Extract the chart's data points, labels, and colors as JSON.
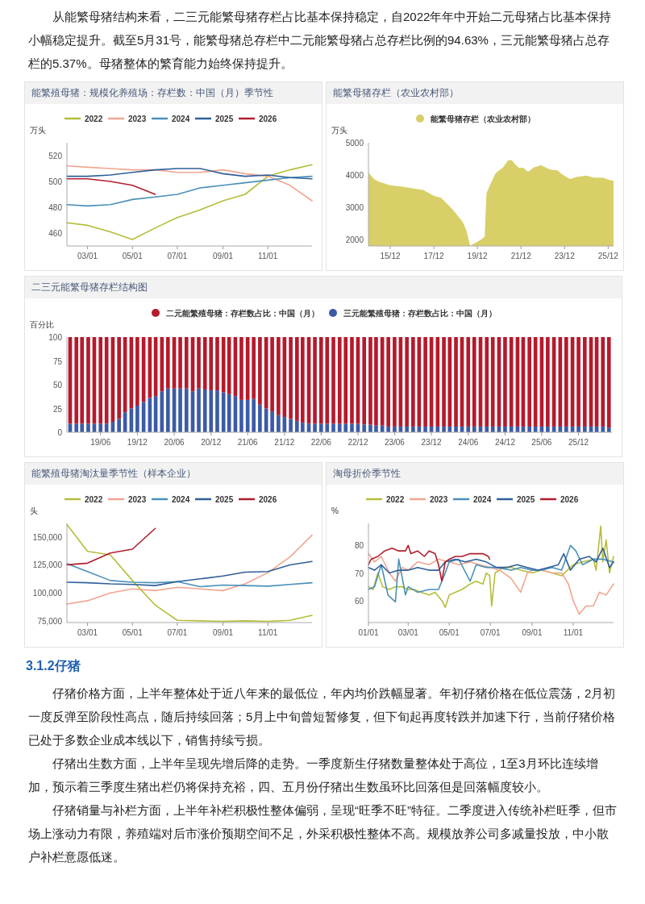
{
  "chart_data": [
    {
      "type": "line",
      "title": "能繁殖母猪：规模化养殖场：存栏数：中国（月）季节性",
      "ylabel": "万头",
      "legend": "top",
      "annotations": [
        "从能繁母猪结构来看，二三元能繁母猪存栏占比基本保持稳定，自2022年年中开始二元母猪占比基本保持小幅稳定提升。截至5月31号，能繁母猪总存栏中二元能繁母猪占总存栏比例的94.63%，三元能繁母猪占总存栏的5.37%。母猪整体的繁育能力始终保持提升。"
      ],
      "x": [
        "--02-01",
        "--03-01",
        "--04-01",
        "--05-01",
        "--06-01",
        "--07-01",
        "--08-01",
        "--09-01",
        "--10-01",
        "--11-01",
        "--12-01",
        "--12-31"
      ],
      "xlim": [
        "--02-01",
        "--12-31"
      ],
      "xticks": [
        {
          "value": "--03-01",
          "label": "03/01"
        },
        {
          "value": "--05-01",
          "label": "05/01"
        },
        {
          "value": "--07-01",
          "label": "07/01"
        },
        {
          "value": "--09-01",
          "label": "09/01"
        },
        {
          "value": "--11-01",
          "label": "11/01"
        }
      ],
      "ylim": [
        450,
        530
      ],
      "yticks": [
        460,
        480,
        500,
        520
      ],
      "series": [
        {
          "name": "2022",
          "color": "#b5bd3a",
          "values": [
            468,
            466,
            461,
            455,
            464,
            472,
            478,
            485,
            490,
            504,
            509,
            513
          ]
        },
        {
          "name": "2023",
          "color": "#f0a58f",
          "values": [
            512,
            511,
            510,
            509,
            509,
            507,
            507,
            509,
            506,
            504,
            497,
            485
          ]
        },
        {
          "name": "2024",
          "color": "#4a90b8",
          "values": [
            482,
            481,
            482,
            486,
            488,
            490,
            495,
            497,
            499,
            501,
            503,
            504
          ]
        },
        {
          "name": "2025",
          "color": "#2f5f9a",
          "values": [
            504,
            504,
            505,
            507,
            509,
            510,
            510,
            506,
            504,
            505,
            503,
            502
          ]
        },
        {
          "name": "2026",
          "color": "#b01e2e",
          "values": [
            502,
            502,
            500,
            497,
            490,
            null,
            null,
            null,
            null,
            null,
            null,
            null
          ]
        }
      ]
    },
    {
      "type": "area",
      "title": "能繁母猪存栏（农业农村部）",
      "ylabel": "万头",
      "legend": "top",
      "x": [
        "2014-12",
        "2015-03",
        "2015-06",
        "2015-12",
        "2016-05",
        "2016-12",
        "2017-06",
        "2017-12",
        "2018-04",
        "2018-08",
        "2018-11",
        "2019-04",
        "2019-06",
        "2019-08",
        "2019-10",
        "2020-02",
        "2020-04",
        "2020-05",
        "2020-07",
        "2020-10",
        "2021-02",
        "2021-05",
        "2021-07",
        "2021-09",
        "2021-11",
        "2022-01",
        "2022-04",
        "2022-07",
        "2022-11",
        "2022-12",
        "2023-04",
        "2023-08",
        "2023-11",
        "2024-03",
        "2024-07",
        "2024-12",
        "2025-04",
        "2025-09",
        "2025-12",
        "2026-03"
      ],
      "xlim": [
        "2014-12",
        "2026-03"
      ],
      "xticks": [
        {
          "value": "2015-12",
          "label": "15/12"
        },
        {
          "value": "2017-12",
          "label": "17/12"
        },
        {
          "value": "2019-12",
          "label": "19/12"
        },
        {
          "value": "2021-12",
          "label": "21/12"
        },
        {
          "value": "2023-12",
          "label": "23/12"
        },
        {
          "value": "2025-12",
          "label": "25/12"
        }
      ],
      "ylim": [
        1800,
        5000
      ],
      "yticks": [
        2000,
        3000,
        4000,
        5000
      ],
      "series": [
        {
          "name": "能繁母猪存栏（农业农村部）",
          "color": "#d8cf68",
          "values": [
            4080,
            3875,
            3786,
            3680,
            3650,
            3590,
            3536,
            3357,
            3295,
            3070,
            2890,
            2536,
            2268,
            1804,
            1866,
            2000,
            2089,
            3430,
            3700,
            4054,
            4232,
            4455,
            4455,
            4320,
            4214,
            4232,
            4098,
            4232,
            4304,
            4277,
            4170,
            4143,
            4009,
            3875,
            3946,
            3982,
            3920,
            3920,
            3857,
            3821
          ]
        }
      ]
    },
    {
      "type": "bar",
      "stacked": true,
      "title": "二三元能繁母猪存栏结构图",
      "ylabel": "百分比",
      "legend": "top",
      "x": [
        "2019-01",
        "2019-02",
        "2019-03",
        "2019-04",
        "2019-05",
        "2019-06",
        "2019-07",
        "2019-08",
        "2019-09",
        "2019-10",
        "2019-11",
        "2019-12",
        "2020-01",
        "2020-02",
        "2020-03",
        "2020-04",
        "2020-05",
        "2020-06",
        "2020-07",
        "2020-08",
        "2020-09",
        "2020-10",
        "2020-11",
        "2020-12",
        "2021-01",
        "2021-02",
        "2021-03",
        "2021-04",
        "2021-05",
        "2021-06",
        "2021-07",
        "2021-08",
        "2021-09",
        "2021-10",
        "2021-11",
        "2021-12",
        "2022-01",
        "2022-02",
        "2022-03",
        "2022-04",
        "2022-05",
        "2022-06",
        "2022-07",
        "2022-08",
        "2022-09",
        "2022-10",
        "2022-11",
        "2022-12",
        "2023-01",
        "2023-02",
        "2023-03",
        "2023-04",
        "2023-05",
        "2023-06",
        "2023-07",
        "2023-08",
        "2023-09",
        "2023-10",
        "2023-11",
        "2023-12",
        "2024-01",
        "2024-02",
        "2024-03",
        "2024-04",
        "2024-05",
        "2024-06",
        "2024-07",
        "2024-08",
        "2024-09",
        "2024-10",
        "2024-11",
        "2024-12",
        "2025-01",
        "2025-02",
        "2025-03",
        "2025-04",
        "2025-05",
        "2025-06",
        "2025-07",
        "2025-08",
        "2025-09",
        "2025-10",
        "2025-11",
        "2025-12",
        "2026-01",
        "2026-02",
        "2026-03",
        "2026-04",
        "2026-05"
      ],
      "xlim": [
        "2018-12-16",
        "2026-05-16"
      ],
      "xticks": [
        {
          "value": "2019-06",
          "label": "19/06"
        },
        {
          "value": "2019-12",
          "label": "19/12"
        },
        {
          "value": "2020-06",
          "label": "20/06"
        },
        {
          "value": "2020-12",
          "label": "20/12"
        },
        {
          "value": "2021-06",
          "label": "21/06"
        },
        {
          "value": "2021-12",
          "label": "21/12"
        },
        {
          "value": "2022-06",
          "label": "22/06"
        },
        {
          "value": "2022-12",
          "label": "22/12"
        },
        {
          "value": "2023-06",
          "label": "23/06"
        },
        {
          "value": "2023-12",
          "label": "23/12"
        },
        {
          "value": "2024-06",
          "label": "24/06"
        },
        {
          "value": "2024-12",
          "label": "24/12"
        },
        {
          "value": "2025-06",
          "label": "25/06"
        },
        {
          "value": "2025-12",
          "label": "25/12"
        }
      ],
      "ylim": [
        0,
        100
      ],
      "yticks": [
        0,
        25,
        50,
        75,
        100
      ],
      "series": [
        {
          "name": "三元能繁殖母猪：存栏数占比：中国（月）",
          "color": "#3c5ba6",
          "values": [
            9,
            9,
            9,
            9,
            9,
            9,
            9,
            11,
            14,
            21,
            25,
            28,
            32,
            36,
            38,
            43,
            46,
            46,
            46,
            46,
            43,
            46,
            45,
            44,
            44,
            42,
            40,
            38,
            34,
            34,
            35,
            29,
            25,
            22,
            18,
            16,
            14,
            12,
            10,
            9,
            9,
            9,
            9,
            9,
            9,
            9,
            9,
            9,
            8,
            8,
            7,
            7,
            6,
            6,
            6,
            6,
            6,
            6,
            6,
            6,
            6,
            6,
            6,
            6,
            6,
            6,
            6,
            6,
            6,
            6,
            6,
            6,
            6,
            6,
            6,
            6,
            6,
            6,
            6,
            6,
            6,
            6,
            6,
            6,
            6,
            6,
            6,
            6,
            5
          ]
        },
        {
          "name": "二元能繁殖母猪：存栏数占比：中国（月）",
          "color": "#b51a2c",
          "values": [
            91,
            91,
            91,
            91,
            91,
            91,
            91,
            89,
            86,
            79,
            75,
            72,
            68,
            64,
            62,
            57,
            54,
            54,
            54,
            54,
            57,
            54,
            55,
            56,
            56,
            58,
            60,
            62,
            66,
            66,
            65,
            71,
            75,
            78,
            82,
            84,
            86,
            88,
            90,
            91,
            91,
            91,
            91,
            91,
            91,
            91,
            91,
            91,
            92,
            92,
            93,
            93,
            94,
            94,
            94,
            94,
            94,
            94,
            94,
            94,
            94,
            94,
            94,
            94,
            94,
            94,
            94,
            94,
            94,
            94,
            94,
            94,
            94,
            94,
            94,
            94,
            94,
            94,
            94,
            94,
            94,
            94,
            94,
            94,
            94,
            94,
            94,
            94,
            95
          ]
        }
      ]
    },
    {
      "type": "line",
      "title": "能繁殖母猪淘汰量季节性（样本企业）",
      "ylabel": "头",
      "legend": "top",
      "x": [
        "--02-01",
        "--03-01",
        "--04-01",
        "--05-01",
        "--06-01",
        "--07-01",
        "--08-01",
        "--09-01",
        "--10-01",
        "--11-01",
        "--12-01",
        "--12-31"
      ],
      "xlim": [
        "--02-01",
        "--12-31"
      ],
      "xticks": [
        {
          "value": "--03-01",
          "label": "03/01"
        },
        {
          "value": "--05-01",
          "label": "05/01"
        },
        {
          "value": "--07-01",
          "label": "07/01"
        },
        {
          "value": "--09-01",
          "label": "09/01"
        },
        {
          "value": "--11-01",
          "label": "11/01"
        }
      ],
      "ylim": [
        73500,
        162000
      ],
      "yticks": [
        {
          "value": 75000,
          "label": "75,000"
        },
        {
          "value": 100000,
          "label": "100,000"
        },
        {
          "value": 125000,
          "label": "125,000"
        },
        {
          "value": 150000,
          "label": "150,000"
        }
      ],
      "series": [
        {
          "name": "2022",
          "color": "#b5bd3a",
          "values": [
            161000,
            137000,
            134000,
            111000,
            89000,
            75500,
            75000,
            74500,
            75000,
            74500,
            75500,
            80000
          ]
        },
        {
          "name": "2023",
          "color": "#f0a58f",
          "values": [
            90000,
            93000,
            100000,
            103500,
            102000,
            105000,
            103500,
            102000,
            108000,
            118000,
            132000,
            151500
          ]
        },
        {
          "name": "2024",
          "color": "#4a90b8",
          "values": [
            126000,
            119000,
            111000,
            109500,
            109000,
            110000,
            105500,
            107000,
            106500,
            106000,
            107500,
            109000
          ]
        },
        {
          "name": "2025",
          "color": "#2f5f9a",
          "values": [
            109500,
            109000,
            108000,
            107500,
            106500,
            110000,
            112500,
            115000,
            118500,
            119000,
            125000,
            128000
          ]
        },
        {
          "name": "2026",
          "color": "#b01e2e",
          "values": [
            125000,
            126500,
            135500,
            139000,
            157500,
            null,
            null,
            null,
            null,
            null,
            null,
            null
          ]
        }
      ]
    },
    {
      "type": "line",
      "title": "淘母折价季节性",
      "ylabel": "%",
      "legend": "top",
      "annotations": [
        "3.1.2仔猪",
        "仔猪价格方面，上半年整体处于近八年来的最低位，年内均价跌幅显著。年初仔猪价格在低位震荡，2月初一度反弹至阶段性高点，随后持续回落；5月上中旬曾短暂修复，但下旬起再度转跌并加速下行，当前仔猪价格已处于多数企业成本线以下，销售持续亏损。",
        "仔猪出生数方面，上半年呈现先增后降的走势。一季度新生仔猪数量整体处于高位，1至3月环比连续增加，预示着三季度生猪出栏仍将保持充裕，四、五月份仔猪出生数虽环比回落但是回落幅度较小。",
        "仔猪销量与补栏方面，上半年补栏积极性整体偏弱，呈现“旺季不旺”特征。二季度进入传统补栏旺季，但市场上涨动力有限，养殖端对后市涨价预期空间不足，外采积极性整体不高。规模放养公司多减量投放，中小散户补栏意愿低迷。"
      ],
      "xlim": [
        "--01-01",
        "--12-31"
      ],
      "xticks": [
        {
          "value": "--01-01",
          "label": "01/01"
        },
        {
          "value": "--03-01",
          "label": "03/01"
        },
        {
          "value": "--05-01",
          "label": "05/01"
        },
        {
          "value": "--07-01",
          "label": "07/01"
        },
        {
          "value": "--09-01",
          "label": "09/01"
        },
        {
          "value": "--11-01",
          "label": "11/01"
        }
      ],
      "ylim": [
        52,
        88
      ],
      "yticks": [
        60,
        70,
        80
      ],
      "series": [
        {
          "name": "2022",
          "color": "#b5bd3a",
          "x": [
            "--01-01",
            "--01-08",
            "--01-15",
            "--01-22",
            "--02-01",
            "--02-10",
            "--02-20",
            "--03-01",
            "--03-10",
            "--03-20",
            "--04-01",
            "--04-10",
            "--04-20",
            "--04-25",
            "--05-01",
            "--05-10",
            "--05-20",
            "--06-01",
            "--06-10",
            "--06-20",
            "--06-25",
            "--06-30",
            "--07-03",
            "--07-08",
            "--07-20",
            "--08-01",
            "--08-15",
            "--09-01",
            "--09-15",
            "--10-01",
            "--10-15",
            "--11-01",
            "--11-15",
            "--12-01",
            "--12-05",
            "--12-12",
            "--12-15",
            "--12-20",
            "--12-25",
            "--12-31"
          ],
          "values": [
            65,
            64,
            70,
            65,
            64,
            65,
            65,
            64,
            64,
            63,
            62,
            63,
            60,
            57.5,
            62,
            63,
            64,
            66,
            67,
            66,
            70,
            69,
            58,
            70,
            72,
            72,
            71,
            70,
            71,
            70,
            69,
            73,
            74,
            75,
            71,
            87,
            74,
            82,
            70,
            76
          ]
        },
        {
          "name": "2023",
          "color": "#f0a58f",
          "x": [
            "--01-01",
            "--01-10",
            "--01-20",
            "--02-01",
            "--02-10",
            "--02-20",
            "--03-01",
            "--03-15",
            "--04-01",
            "--04-15",
            "--05-01",
            "--05-15",
            "--06-01",
            "--06-15",
            "--07-01",
            "--07-15",
            "--08-01",
            "--08-15",
            "--08-25",
            "--09-01",
            "--09-15",
            "--10-01",
            "--10-15",
            "--10-25",
            "--11-01",
            "--11-10",
            "--11-20",
            "--12-01",
            "--12-10",
            "--12-20",
            "--12-31"
          ],
          "values": [
            77,
            74,
            76,
            70,
            67,
            72,
            71,
            74,
            73,
            75,
            74,
            73,
            74,
            73,
            72,
            71,
            68,
            63,
            70,
            71,
            71,
            70,
            70,
            66,
            60,
            55,
            58,
            58,
            63,
            62,
            66
          ]
        },
        {
          "name": "2024",
          "color": "#4a90b8",
          "x": [
            "--01-01",
            "--01-10",
            "--01-20",
            "--01-30",
            "--02-10",
            "--02-15",
            "--02-25",
            "--03-01",
            "--03-15",
            "--04-01",
            "--04-15",
            "--04-25",
            "--05-01",
            "--05-15",
            "--06-01",
            "--06-10",
            "--06-25",
            "--07-10",
            "--08-01",
            "--08-15",
            "--09-01",
            "--09-15",
            "--10-01",
            "--10-15",
            "--10-28",
            "--11-05",
            "--11-15",
            "--12-01",
            "--12-15",
            "--12-31"
          ],
          "values": [
            64,
            65,
            73,
            62,
            59.5,
            75,
            62,
            65,
            63,
            64,
            64,
            70,
            74,
            75,
            67,
            73,
            72,
            72,
            71,
            72,
            71,
            71,
            72,
            71,
            80,
            78,
            73,
            75,
            75,
            74
          ]
        },
        {
          "name": "2025",
          "color": "#2f5f9a",
          "x": [
            "--01-01",
            "--01-10",
            "--01-20",
            "--02-01",
            "--02-15",
            "--03-01",
            "--03-15",
            "--04-01",
            "--04-15",
            "--04-25",
            "--05-10",
            "--05-25",
            "--06-10",
            "--06-25",
            "--07-10",
            "--07-25",
            "--08-10",
            "--08-25",
            "--09-10",
            "--09-25",
            "--10-10",
            "--10-18",
            "--10-28",
            "--11-10",
            "--11-25",
            "--12-05",
            "--12-15",
            "--12-25",
            "--12-31"
          ],
          "values": [
            72,
            71,
            73,
            70,
            71,
            71,
            72,
            71,
            71,
            74,
            75,
            74,
            75,
            74,
            72,
            72,
            73,
            72,
            71,
            72,
            73,
            77,
            71,
            75,
            76,
            74,
            79,
            72,
            74
          ]
        },
        {
          "name": "2026",
          "color": "#b01e2e",
          "x": [
            "--01-01",
            "--01-05",
            "--01-15",
            "--01-25",
            "--02-05",
            "--02-15",
            "--02-25",
            "--03-01",
            "--03-05",
            "--03-15",
            "--03-25",
            "--04-01",
            "--04-10",
            "--04-15",
            "--04-20",
            "--04-25",
            "--05-01",
            "--05-10",
            "--05-20",
            "--06-01",
            "--06-10",
            "--06-20",
            "--06-28",
            "--06-30"
          ],
          "values": [
            73,
            75,
            76,
            78,
            79,
            78,
            78,
            80,
            77,
            78,
            76,
            78,
            77,
            73,
            67,
            74,
            75,
            76,
            76,
            77,
            77,
            77,
            76,
            75
          ]
        }
      ]
    }
  ]
}
